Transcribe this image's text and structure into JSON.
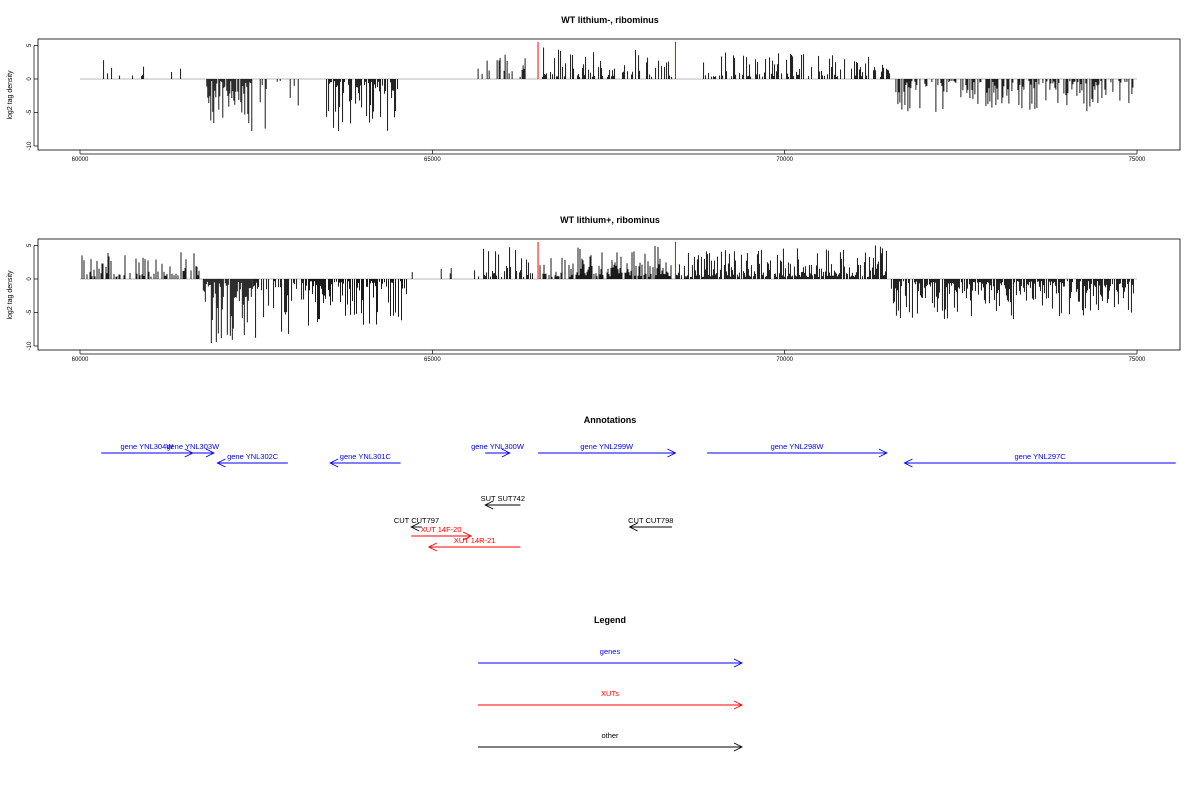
{
  "chart_data": [
    {
      "type": "bar",
      "title": "WT lithium-, ribominus",
      "ylabel": "log2 tag density",
      "xlabel": "",
      "xlim": [
        60000,
        75000
      ],
      "ylim": [
        -10,
        6
      ],
      "x_ticks": [
        "60000",
        "65000",
        "70000",
        "75000"
      ],
      "y_ticks": [
        "-10",
        "-5",
        "0",
        "5"
      ],
      "red_markers_x": [
        66500,
        68450
      ],
      "segments": [
        {
          "from": 60250,
          "to": 60950,
          "sign": 1,
          "max": 4,
          "density": 0.22
        },
        {
          "from": 61300,
          "to": 61600,
          "sign": 1,
          "max": 3,
          "density": 0.15
        },
        {
          "from": 61800,
          "to": 62450,
          "sign": -1,
          "max": 10,
          "density": 0.9
        },
        {
          "from": 62500,
          "to": 63150,
          "sign": -1,
          "max": 9,
          "density": 0.4
        },
        {
          "from": 63500,
          "to": 64550,
          "sign": -1,
          "max": 8,
          "density": 0.7
        },
        {
          "from": 65650,
          "to": 66450,
          "sign": 1,
          "max": 4,
          "density": 0.35
        },
        {
          "from": 66550,
          "to": 68400,
          "sign": 1,
          "max": 5,
          "density": 0.45
        },
        {
          "from": 68850,
          "to": 71500,
          "sign": 1,
          "max": 4,
          "density": 0.5
        },
        {
          "from": 71550,
          "to": 74950,
          "sign": -1,
          "max": 5,
          "density": 0.55
        }
      ]
    },
    {
      "type": "bar",
      "title": "WT lithium+, ribominus",
      "ylabel": "log2 tag density",
      "xlabel": "",
      "xlim": [
        60000,
        75000
      ],
      "ylim": [
        -10,
        6
      ],
      "x_ticks": [
        "60000",
        "65000",
        "70000",
        "75000"
      ],
      "y_ticks": [
        "-10",
        "-5",
        "0",
        "5"
      ],
      "red_markers_x": [
        66500,
        68450
      ],
      "segments": [
        {
          "from": 60000,
          "to": 61700,
          "sign": 1,
          "max": 4,
          "density": 0.55
        },
        {
          "from": 61750,
          "to": 62450,
          "sign": -1,
          "max": 10,
          "density": 0.95
        },
        {
          "from": 62450,
          "to": 63200,
          "sign": -1,
          "max": 9,
          "density": 0.6
        },
        {
          "from": 63200,
          "to": 64650,
          "sign": -1,
          "max": 7,
          "density": 0.7
        },
        {
          "from": 64700,
          "to": 65600,
          "sign": 1,
          "max": 2,
          "density": 0.1
        },
        {
          "from": 65600,
          "to": 66450,
          "sign": 1,
          "max": 5,
          "density": 0.55
        },
        {
          "from": 66500,
          "to": 68400,
          "sign": 1,
          "max": 5,
          "density": 0.8
        },
        {
          "from": 68450,
          "to": 71450,
          "sign": 1,
          "max": 5,
          "density": 0.85
        },
        {
          "from": 71500,
          "to": 74950,
          "sign": -1,
          "max": 6,
          "density": 0.85
        }
      ]
    }
  ],
  "annotations": {
    "title": "Annotations",
    "features": [
      {
        "label": "gene YNL304W",
        "start": 60300,
        "end": 61600,
        "strand": "+",
        "row": 0,
        "color": "#0000ff"
      },
      {
        "label": "gene YNL303W",
        "start": 61300,
        "end": 61900,
        "strand": "+",
        "row": 0,
        "color": "#0000ff"
      },
      {
        "label": "gene YNL302C",
        "start": 61950,
        "end": 62950,
        "strand": "-",
        "row": 1,
        "color": "#0000ff"
      },
      {
        "label": "gene YNL301C",
        "start": 63550,
        "end": 64550,
        "strand": "-",
        "row": 1,
        "color": "#0000ff"
      },
      {
        "label": "gene YNL300W",
        "start": 65750,
        "end": 66100,
        "strand": "+",
        "row": 0,
        "color": "#0000ff"
      },
      {
        "label": "gene YNL299W",
        "start": 66500,
        "end": 68450,
        "strand": "+",
        "row": 0,
        "color": "#0000ff"
      },
      {
        "label": "gene YNL298W",
        "start": 68900,
        "end": 71450,
        "strand": "+",
        "row": 0,
        "color": "#0000ff"
      },
      {
        "label": "gene YNL297C",
        "start": 71700,
        "end": 75550,
        "strand": "-",
        "row": 1,
        "color": "#0000ff"
      },
      {
        "label": "SUT SUT742",
        "start": 65750,
        "end": 66250,
        "strand": "-",
        "row": 4,
        "color": "#000000"
      },
      {
        "label": "CUT CUT797",
        "start": 64700,
        "end": 64850,
        "strand": "-",
        "row": 6,
        "color": "#000000"
      },
      {
        "label": "CUT CUT798",
        "start": 67800,
        "end": 68400,
        "strand": "-",
        "row": 6,
        "color": "#000000"
      },
      {
        "label": "XUT 14F-20",
        "start": 64700,
        "end": 65550,
        "strand": "+",
        "row": 7,
        "color": "#ff0000"
      },
      {
        "label": "XUT 14R-21",
        "start": 64950,
        "end": 66250,
        "strand": "-",
        "row": 8,
        "color": "#ff0000"
      }
    ]
  },
  "legend": {
    "title": "Legend",
    "items": [
      {
        "label": "genes",
        "color": "#0000ff"
      },
      {
        "label": "XUTs",
        "color": "#ff0000"
      },
      {
        "label": "other",
        "color": "#000000"
      }
    ]
  }
}
